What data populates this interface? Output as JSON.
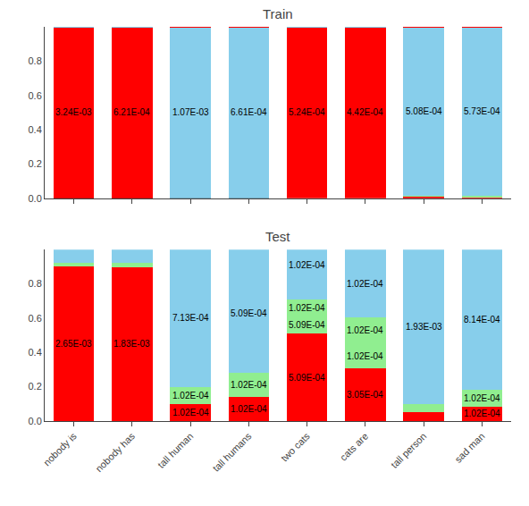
{
  "chart_data": [
    {
      "type": "bar",
      "title": "Train",
      "stacked": true,
      "categories": [
        "nobody is",
        "nobody has",
        "tall human",
        "tall humans",
        "two cats",
        "cats are",
        "tall person",
        "sad man"
      ],
      "series": [
        {
          "colors": [
            "#000000",
            "#000000",
            "#000000",
            "#000000",
            "#FF0000",
            "#FF0000",
            "#FF0000",
            "#FF0000"
          ],
          "values": [
            0.0003,
            0.0003,
            0.0003,
            0.0001,
            0.9993,
            0.9993,
            0.01,
            0.008
          ]
        },
        {
          "colors": [
            "#FF0000",
            "#FF0000",
            "#87CEEB",
            "#87CEEB",
            "#90EE90",
            "#90EE90",
            "#90EE90",
            "#90EE90"
          ],
          "values": [
            0.9994,
            0.9994,
            0.9994,
            0.9996,
            0.0004,
            0.0004,
            0.007,
            0.007
          ]
        },
        {
          "colors": [
            "#87CEEB",
            "#87CEEB",
            "#FF0000",
            "#FF0000",
            "#87CEEB",
            "#87CEEB",
            "#87CEEB",
            "#87CEEB"
          ],
          "values": [
            0.0003,
            0.0003,
            0.0003,
            0.0003,
            0.0003,
            0.0003,
            0.98,
            0.982
          ]
        },
        {
          "colors": [
            null,
            null,
            null,
            null,
            null,
            null,
            "#90EE90",
            "#FF0000"
          ],
          "values": [
            null,
            null,
            null,
            null,
            null,
            null,
            0.002,
            0.003
          ]
        },
        {
          "colors": [
            null,
            null,
            null,
            null,
            null,
            null,
            "#FF0000",
            null
          ],
          "values": [
            null,
            null,
            null,
            null,
            null,
            null,
            0.001,
            null
          ]
        }
      ],
      "annotations": [
        {
          "text": "3.24E-03",
          "x": "nobody is",
          "y": 0.5
        },
        {
          "text": "6.21E-04",
          "x": "nobody has",
          "y": 0.5
        },
        {
          "text": "1.07E-03",
          "x": "tall human",
          "y": 0.5
        },
        {
          "text": "6.61E-04",
          "x": "tall humans",
          "y": 0.4999
        },
        {
          "text": "5.24E-04",
          "x": "two cats",
          "y": 0.49965
        },
        {
          "text": "4.42E-04",
          "x": "cats are",
          "y": 0.49965
        },
        {
          "text": "5.08E-04",
          "x": "tall person",
          "y": 0.507
        },
        {
          "text": "5.73E-04",
          "x": "sad man",
          "y": 0.506
        }
      ],
      "ylim": [
        0,
        1.0
      ],
      "yticks": [
        {
          "value": 0,
          "label": "0.0"
        },
        0.2,
        0.4,
        0.6,
        0.8
      ],
      "grid": false,
      "tick_labels": "y"
    },
    {
      "type": "bar",
      "title": "Test",
      "stacked": true,
      "categories": [
        "nobody is",
        "nobody has",
        "tall human",
        "tall humans",
        "two cats",
        "cats are",
        "tall person",
        "sad man"
      ],
      "series": [
        {
          "colors": [
            "#FF0000",
            "#FF0000",
            "#FF0000",
            "#FF0000",
            "#FF0000",
            "#FF0000",
            "#FF0000",
            "#FF0000"
          ],
          "values": [
            0.9,
            0.895,
            0.1,
            0.14,
            0.51,
            0.305,
            0.05,
            0.085
          ]
        },
        {
          "colors": [
            "#90EE90",
            "#90EE90",
            "#90EE90",
            "#90EE90",
            "#90EE90",
            "#90EE90",
            "#90EE90",
            "#90EE90"
          ],
          "values": [
            0.025,
            0.03,
            0.1,
            0.14,
            0.1,
            0.15,
            0.05,
            0.1
          ]
        },
        {
          "colors": [
            "#87CEEB",
            "#87CEEB",
            "#87CEEB",
            "#87CEEB",
            "#90EE90",
            "#90EE90",
            "#87CEEB",
            "#87CEEB"
          ],
          "values": [
            0.075,
            0.075,
            0.8,
            0.72,
            0.1,
            0.15,
            0.9,
            0.815
          ]
        },
        {
          "colors": [
            null,
            null,
            null,
            null,
            "#87CEEB",
            "#87CEEB",
            null,
            null
          ],
          "values": [
            null,
            null,
            null,
            null,
            0.29,
            0.395,
            null,
            null
          ]
        }
      ],
      "annotations": [
        {
          "text": "2.65E-03",
          "x": "nobody is",
          "y": 0.45
        },
        {
          "text": "1.83E-03",
          "x": "nobody has",
          "y": 0.45
        },
        {
          "text": "1.02E-04",
          "x": "tall human",
          "y": 0.05
        },
        {
          "text": "1.02E-04",
          "x": "tall human",
          "y": 0.15
        },
        {
          "text": "7.13E-04",
          "x": "tall human",
          "y": 0.6
        },
        {
          "text": "1.02E-04",
          "x": "tall humans",
          "y": 0.07
        },
        {
          "text": "1.02E-04",
          "x": "tall humans",
          "y": 0.21
        },
        {
          "text": "5.09E-04",
          "x": "tall humans",
          "y": 0.63
        },
        {
          "text": "5.09E-04",
          "x": "two cats",
          "y": 0.255
        },
        {
          "text": "5.09E-04",
          "x": "two cats",
          "y": 0.56
        },
        {
          "text": "1.02E-04",
          "x": "two cats",
          "y": 0.66
        },
        {
          "text": "1.02E-04",
          "x": "two cats",
          "y": 0.91
        },
        {
          "text": "3.05E-04",
          "x": "cats are",
          "y": 0.153
        },
        {
          "text": "1.02E-04",
          "x": "cats are",
          "y": 0.38
        },
        {
          "text": "1.02E-04",
          "x": "cats are",
          "y": 0.53
        },
        {
          "text": "1.02E-04",
          "x": "cats are",
          "y": 0.8
        },
        {
          "text": "1.93E-03",
          "x": "tall person",
          "y": 0.55
        },
        {
          "text": "1.02E-04",
          "x": "sad man",
          "y": 0.043
        },
        {
          "text": "1.02E-04",
          "x": "sad man",
          "y": 0.135
        },
        {
          "text": "8.14E-04",
          "x": "sad man",
          "y": 0.593
        }
      ],
      "ylim": [
        0,
        1.0
      ],
      "yticks": [
        {
          "value": 0,
          "label": "0.0"
        },
        0.2,
        0.4,
        0.6,
        0.8
      ],
      "grid": false
    }
  ]
}
